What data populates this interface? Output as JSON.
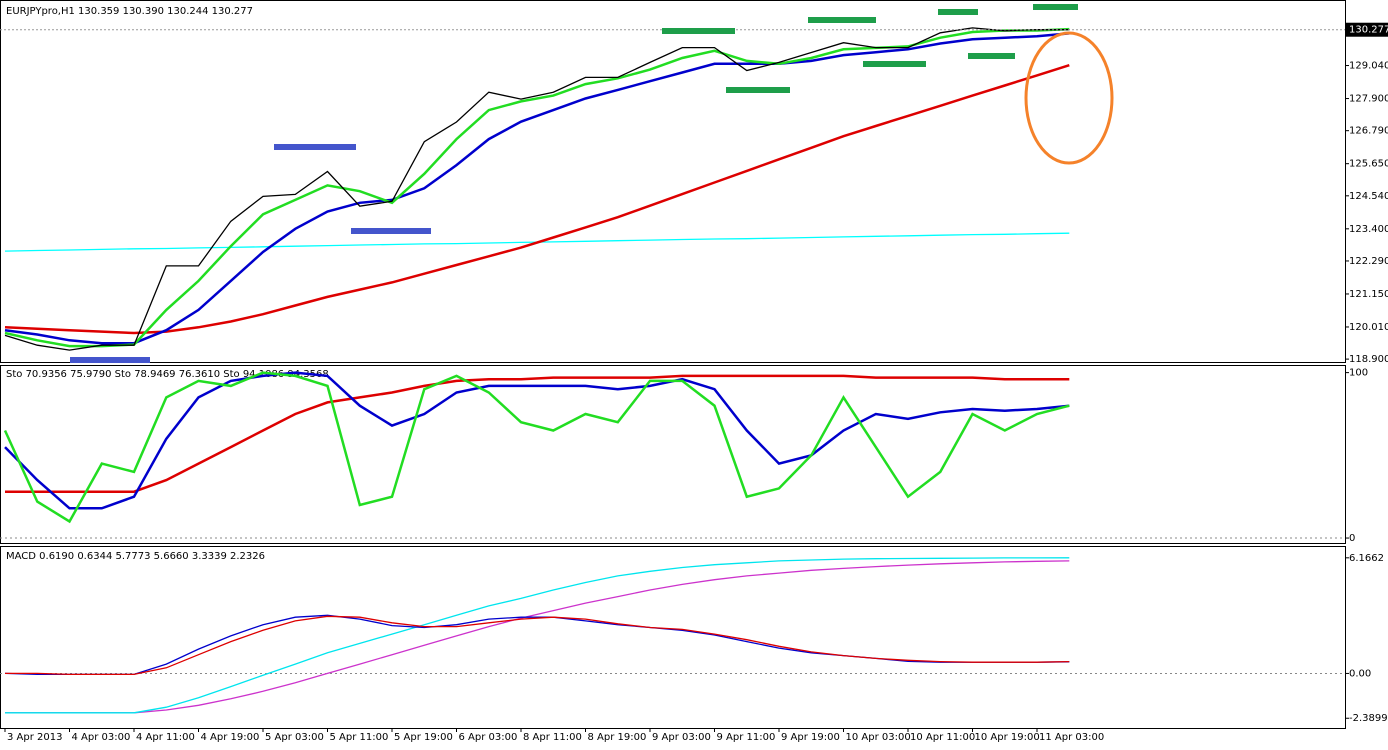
{
  "chart_data": [
    {
      "type": "line",
      "title": "EURJPYpro,H1  130.359 130.390 130.244 130.277",
      "ylim": [
        118.8,
        131.2
      ],
      "yticks": [
        {
          "value": 129.04,
          "label": "129.040"
        },
        {
          "value": 127.9,
          "label": "127.900"
        },
        {
          "value": 126.79,
          "label": "126.790"
        },
        {
          "value": 125.65,
          "label": "125.650"
        },
        {
          "value": 124.54,
          "label": "124.540"
        },
        {
          "value": 123.4,
          "label": "123.400"
        },
        {
          "value": 122.29,
          "label": "122.290"
        },
        {
          "value": 121.15,
          "label": "121.150"
        },
        {
          "value": 120.01,
          "label": "120.010"
        },
        {
          "value": 118.9,
          "label": "118.900"
        }
      ],
      "last_price": {
        "value": 130.277,
        "label": "130.277"
      },
      "series": [
        {
          "color": "#00ffff",
          "values": [
            122.63,
            122.65,
            122.67,
            122.69,
            122.71,
            122.72,
            122.74,
            122.76,
            122.78,
            122.8,
            122.82,
            122.84,
            122.86,
            122.88,
            122.89,
            122.91,
            122.93,
            122.95,
            122.97,
            122.99,
            123.01,
            123.03,
            123.05,
            123.06,
            123.08,
            123.1,
            123.12,
            123.14,
            123.16,
            123.18,
            123.2,
            123.21,
            123.23,
            123.25
          ]
        },
        {
          "color": "#dd0000",
          "values": [
            120.0,
            119.95,
            119.9,
            119.85,
            119.8,
            119.85,
            120.0,
            120.2,
            120.45,
            120.75,
            121.05,
            121.3,
            121.55,
            121.85,
            122.15,
            122.45,
            122.75,
            123.1,
            123.45,
            123.8,
            124.2,
            124.6,
            125.0,
            125.4,
            125.8,
            126.2,
            126.6,
            126.95,
            127.3,
            127.65,
            128.0,
            128.35,
            128.7,
            129.05
          ]
        },
        {
          "color": "#0000cc",
          "values": [
            119.9,
            119.75,
            119.55,
            119.45,
            119.45,
            119.9,
            120.6,
            121.6,
            122.6,
            123.4,
            124.0,
            124.3,
            124.4,
            124.8,
            125.6,
            126.5,
            127.1,
            127.5,
            127.9,
            128.2,
            128.5,
            128.8,
            129.1,
            129.1,
            129.1,
            129.2,
            129.4,
            129.5,
            129.6,
            129.8,
            129.95,
            130.0,
            130.05,
            130.15
          ]
        },
        {
          "color": "#22dd22",
          "values": [
            119.8,
            119.55,
            119.35,
            119.35,
            119.4,
            120.6,
            121.6,
            122.8,
            123.9,
            124.4,
            124.9,
            124.7,
            124.3,
            125.3,
            126.5,
            127.5,
            127.8,
            128.0,
            128.4,
            128.6,
            128.9,
            129.3,
            129.55,
            129.2,
            129.1,
            129.3,
            129.6,
            129.65,
            129.7,
            130.0,
            130.2,
            130.25,
            130.25,
            130.3
          ]
        },
        {
          "color": "#000000",
          "values": [
            119.72,
            119.38,
            119.21,
            119.38,
            119.38,
            122.12,
            122.12,
            123.66,
            124.52,
            124.59,
            125.38,
            124.18,
            124.35,
            126.41,
            127.09,
            128.12,
            127.88,
            128.12,
            128.63,
            128.63,
            129.15,
            129.66,
            129.66,
            128.87,
            129.15,
            129.49,
            129.83,
            129.66,
            129.66,
            130.17,
            130.34,
            130.24,
            130.28,
            130.277
          ]
        }
      ]
    },
    {
      "type": "line",
      "title": "Sto 70.9356 75.9790  Sto 78.9469 76.3610  Sto 94.1086 94.3568",
      "ylim": [
        -3,
        104
      ],
      "yticks": [
        100,
        0
      ],
      "series": [
        {
          "color": "#dd0000",
          "values": [
            28,
            28,
            28,
            28,
            28,
            35,
            45,
            55,
            65,
            75,
            82,
            85,
            88,
            92,
            95,
            96,
            96,
            97,
            97,
            97,
            97,
            98,
            98,
            98,
            98,
            98,
            98,
            97,
            97,
            97,
            97,
            96,
            96,
            96
          ]
        },
        {
          "color": "#0000cc",
          "values": [
            55,
            35,
            18,
            18,
            25,
            60,
            85,
            95,
            98,
            100,
            98,
            80,
            68,
            75,
            88,
            92,
            92,
            92,
            92,
            90,
            92,
            96,
            90,
            65,
            45,
            50,
            65,
            75,
            72,
            76,
            78,
            77,
            78,
            80
          ]
        },
        {
          "color": "#22dd22",
          "values": [
            65,
            22,
            10,
            45,
            40,
            85,
            95,
            92,
            100,
            98,
            92,
            20,
            25,
            90,
            98,
            88,
            70,
            65,
            75,
            70,
            95,
            95,
            80,
            25,
            30,
            50,
            85,
            55,
            25,
            40,
            75,
            65,
            75,
            80
          ]
        }
      ]
    },
    {
      "type": "line",
      "title": "MACD 0.6190 0.6344 5.7773 5.6660 3.3339 2.2326",
      "ylim": [
        -2.91,
        6.69
      ],
      "yticks": [
        6.1662,
        {
          "value": 0,
          "label": "0.00"
        },
        -2.3899
      ],
      "categories": [
        "3 Apr 2013",
        null,
        "4 Apr 03:00",
        null,
        "4 Apr 11:00",
        null,
        "4 Apr 19:00",
        null,
        "5 Apr 03:00",
        null,
        "5 Apr 11:00",
        null,
        "5 Apr 19:00",
        null,
        "6 Apr 03:00",
        null,
        "8 Apr 11:00",
        null,
        "8 Apr 19:00",
        null,
        "9 Apr 03:00",
        null,
        "9 Apr 11:00",
        null,
        "9 Apr 19:00",
        null,
        "10 Apr 03:00",
        null,
        "10 Apr 11:00",
        null,
        "10 Apr 19:00",
        null,
        "11 Apr 03:00",
        null
      ],
      "series": [
        {
          "color": "#cc33cc",
          "values": [
            -2.1,
            -2.1,
            -2.1,
            -2.1,
            -2.1,
            -1.95,
            -1.7,
            -1.35,
            -0.95,
            -0.5,
            0,
            0.5,
            1.0,
            1.5,
            2.0,
            2.5,
            2.95,
            3.35,
            3.75,
            4.1,
            4.45,
            4.75,
            5.0,
            5.2,
            5.35,
            5.5,
            5.6,
            5.7,
            5.78,
            5.85,
            5.9,
            5.95,
            5.98,
            6.0
          ]
        },
        {
          "color": "#00e5ee",
          "values": [
            -2.1,
            -2.1,
            -2.1,
            -2.1,
            -2.1,
            -1.8,
            -1.3,
            -0.7,
            -0.1,
            0.5,
            1.1,
            1.6,
            2.1,
            2.6,
            3.1,
            3.6,
            4.0,
            4.45,
            4.85,
            5.2,
            5.45,
            5.65,
            5.8,
            5.9,
            6.0,
            6.05,
            6.1,
            6.12,
            6.13,
            6.14,
            6.15,
            6.16,
            6.16,
            6.17
          ]
        },
        {
          "color": "#0000cc",
          "values": [
            0,
            -0.05,
            -0.05,
            -0.05,
            -0.05,
            0.5,
            1.3,
            2.0,
            2.6,
            3.0,
            3.1,
            2.9,
            2.55,
            2.45,
            2.6,
            2.9,
            3.0,
            3.0,
            2.8,
            2.6,
            2.45,
            2.3,
            2.05,
            1.7,
            1.35,
            1.1,
            0.95,
            0.8,
            0.65,
            0.6,
            0.6,
            0.6,
            0.6,
            0.62
          ]
        },
        {
          "color": "#dd0000",
          "values": [
            0,
            0,
            -0.05,
            -0.05,
            -0.05,
            0.3,
            1.0,
            1.7,
            2.3,
            2.8,
            3.05,
            3.0,
            2.7,
            2.5,
            2.5,
            2.7,
            2.9,
            3.0,
            2.9,
            2.65,
            2.45,
            2.35,
            2.1,
            1.8,
            1.45,
            1.15,
            0.95,
            0.8,
            0.7,
            0.63,
            0.6,
            0.6,
            0.6,
            0.63
          ]
        }
      ]
    }
  ]
}
